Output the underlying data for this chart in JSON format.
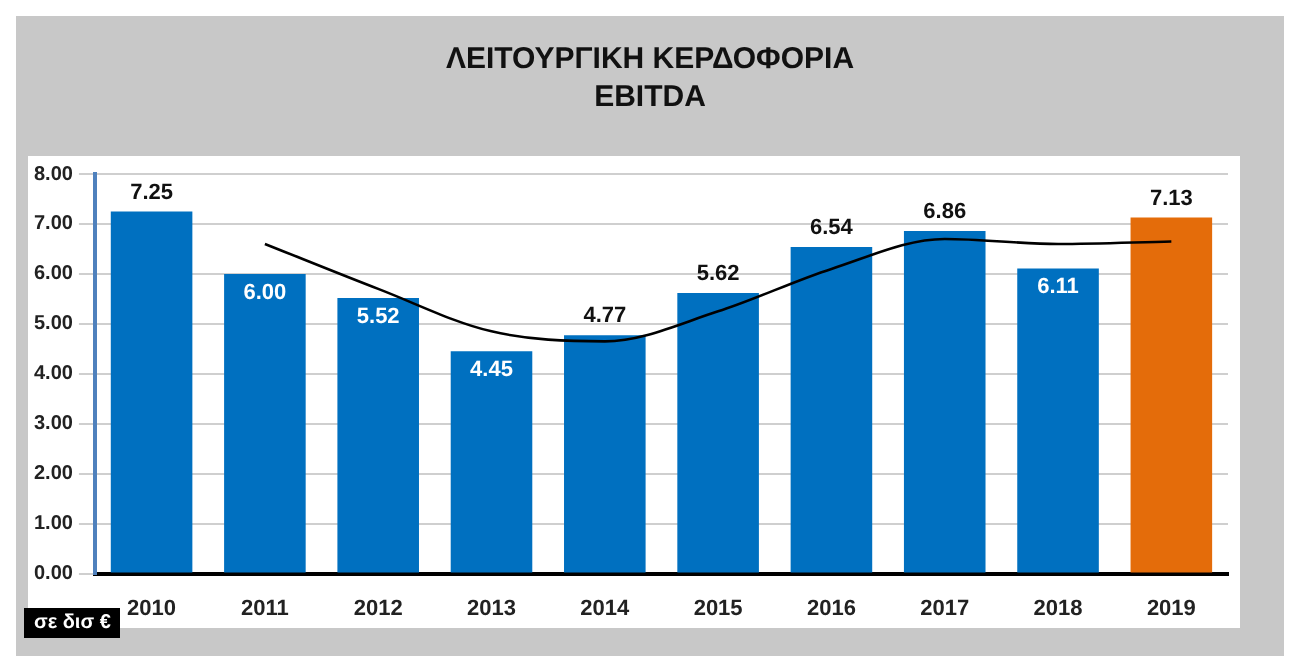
{
  "chart_data": {
    "type": "bar",
    "title": "ΛΕΙΤΟΥΡΓΙΚΗ ΚΕΡΔΟΦΟΡΙΑ\nEBITDA",
    "categories": [
      "2010",
      "2011",
      "2012",
      "2013",
      "2014",
      "2015",
      "2016",
      "2017",
      "2018",
      "2019"
    ],
    "series": [
      {
        "colors": [
          "#0070c0",
          "#0070c0",
          "#0070c0",
          "#0070c0",
          "#0070c0",
          "#0070c0",
          "#0070c0",
          "#0070c0",
          "#0070c0",
          "#e46c0a"
        ],
        "values": [
          7.25,
          6.0,
          5.52,
          4.45,
          4.77,
          5.62,
          6.54,
          6.86,
          6.11,
          7.13
        ],
        "value_labels": [
          "7.25",
          "6.00",
          "5.52",
          "4.45",
          "4.77",
          "5.62",
          "6.54",
          "6.86",
          "6.11",
          "7.13"
        ]
      },
      {
        "type": "line",
        "color": "#000000",
        "values": [
          null,
          6.6,
          5.7,
          4.85,
          4.65,
          5.25,
          6.1,
          6.7,
          6.6,
          6.65
        ]
      }
    ],
    "ylim": [
      0,
      8
    ],
    "yticks": [
      {
        "value": 0,
        "label": "0.00"
      },
      {
        "value": 1,
        "label": "1.00"
      },
      {
        "value": 2,
        "label": "2.00"
      },
      {
        "value": 3,
        "label": "3.00"
      },
      {
        "value": 4,
        "label": "4.00"
      },
      {
        "value": 5,
        "label": "5.00"
      },
      {
        "value": 6,
        "label": "6.00"
      },
      {
        "value": 7,
        "label": "7.00"
      },
      {
        "value": 8,
        "label": "8.00"
      }
    ],
    "grid": "y",
    "legend": false,
    "marker": "none",
    "line_style": "solid",
    "annotations": [
      "σε δισ €"
    ]
  }
}
